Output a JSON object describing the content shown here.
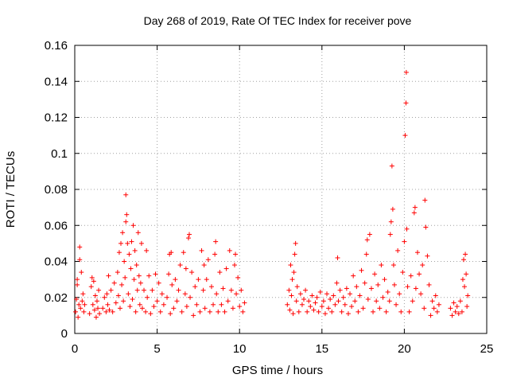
{
  "chart_data": {
    "type": "scatter",
    "title": "Day 268 of 2019, Rate Of TEC Index for receiver pove",
    "xlabel": "GPS time / hours",
    "ylabel": "ROTI / TECUs",
    "xlim": [
      0,
      24
    ],
    "ylim": [
      0,
      0.16
    ],
    "xticks": [
      0,
      5,
      10,
      15,
      20,
      25
    ],
    "xtick_labels": [
      "0",
      "5",
      "10",
      "15",
      "20",
      "25"
    ],
    "yticks": [
      0,
      0.02,
      0.04,
      0.06,
      0.08,
      0.1,
      0.12,
      0.14,
      0.16
    ],
    "ytick_labels": [
      "0",
      "0.02",
      "0.04",
      "0.06",
      "0.08",
      "0.1",
      "0.12",
      "0.14",
      "0.16"
    ],
    "grid": true,
    "marker": "+",
    "color": "#ff0000",
    "series": [
      {
        "name": "ROTI",
        "points": [
          [
            0.05,
            0.012
          ],
          [
            0.1,
            0.019
          ],
          [
            0.15,
            0.027
          ],
          [
            0.2,
            0.009
          ],
          [
            0.25,
            0.016
          ],
          [
            0.3,
            0.041
          ],
          [
            0.35,
            0.014
          ],
          [
            0.4,
            0.034
          ],
          [
            0.45,
            0.018
          ],
          [
            0.5,
            0.022
          ],
          [
            0.55,
            0.012
          ],
          [
            0.6,
            0.016
          ],
          [
            0.15,
            0.03
          ],
          [
            0.3,
            0.048
          ],
          [
            0.9,
            0.011
          ],
          [
            1.0,
            0.026
          ],
          [
            1.05,
            0.031
          ],
          [
            1.1,
            0.016
          ],
          [
            1.15,
            0.029
          ],
          [
            1.2,
            0.013
          ],
          [
            1.25,
            0.021
          ],
          [
            1.3,
            0.009
          ],
          [
            1.35,
            0.018
          ],
          [
            1.4,
            0.014
          ],
          [
            1.45,
            0.024
          ],
          [
            1.5,
            0.011
          ],
          [
            1.7,
            0.014
          ],
          [
            1.8,
            0.02
          ],
          [
            1.9,
            0.012
          ],
          [
            1.95,
            0.022
          ],
          [
            2.0,
            0.016
          ],
          [
            2.05,
            0.032
          ],
          [
            2.1,
            0.013
          ],
          [
            2.2,
            0.024
          ],
          [
            2.3,
            0.012
          ],
          [
            2.4,
            0.028
          ],
          [
            2.5,
            0.017
          ],
          [
            2.6,
            0.034
          ],
          [
            2.65,
            0.021
          ],
          [
            2.7,
            0.045
          ],
          [
            2.75,
            0.014
          ],
          [
            2.8,
            0.05
          ],
          [
            2.85,
            0.027
          ],
          [
            2.9,
            0.056
          ],
          [
            2.95,
            0.018
          ],
          [
            3.0,
            0.04
          ],
          [
            3.05,
            0.031
          ],
          [
            3.1,
            0.062
          ],
          [
            3.1,
            0.077
          ],
          [
            3.15,
            0.066
          ],
          [
            3.2,
            0.05
          ],
          [
            3.25,
            0.022
          ],
          [
            3.3,
            0.044
          ],
          [
            3.35,
            0.015
          ],
          [
            3.4,
            0.036
          ],
          [
            3.45,
            0.051
          ],
          [
            3.5,
            0.019
          ],
          [
            3.55,
            0.06
          ],
          [
            3.6,
            0.03
          ],
          [
            3.65,
            0.046
          ],
          [
            3.7,
            0.012
          ],
          [
            3.75,
            0.038
          ],
          [
            3.8,
            0.024
          ],
          [
            3.85,
            0.056
          ],
          [
            3.9,
            0.032
          ],
          [
            3.95,
            0.016
          ],
          [
            4.0,
            0.028
          ],
          [
            4.05,
            0.05
          ],
          [
            4.1,
            0.014
          ],
          [
            4.2,
            0.024
          ],
          [
            4.3,
            0.012
          ],
          [
            4.35,
            0.046
          ],
          [
            4.4,
            0.02
          ],
          [
            4.5,
            0.032
          ],
          [
            4.6,
            0.011
          ],
          [
            4.7,
            0.024
          ],
          [
            4.8,
            0.015
          ],
          [
            4.9,
            0.033
          ],
          [
            5.0,
            0.018
          ],
          [
            5.1,
            0.028
          ],
          [
            5.2,
            0.012
          ],
          [
            5.3,
            0.022
          ],
          [
            5.4,
            0.016
          ],
          [
            5.6,
            0.02
          ],
          [
            5.7,
            0.033
          ],
          [
            5.75,
            0.044
          ],
          [
            5.8,
            0.011
          ],
          [
            5.85,
            0.045
          ],
          [
            5.9,
            0.027
          ],
          [
            6.0,
            0.014
          ],
          [
            6.1,
            0.03
          ],
          [
            6.2,
            0.018
          ],
          [
            6.3,
            0.024
          ],
          [
            6.4,
            0.038
          ],
          [
            6.5,
            0.012
          ],
          [
            6.6,
            0.045
          ],
          [
            6.7,
            0.022
          ],
          [
            6.75,
            0.036
          ],
          [
            6.8,
            0.015
          ],
          [
            6.9,
            0.053
          ],
          [
            6.95,
            0.055
          ],
          [
            7.0,
            0.02
          ],
          [
            7.1,
            0.034
          ],
          [
            7.2,
            0.01
          ],
          [
            7.3,
            0.026
          ],
          [
            7.4,
            0.016
          ],
          [
            7.5,
            0.03
          ],
          [
            7.6,
            0.012
          ],
          [
            7.7,
            0.046
          ],
          [
            7.8,
            0.024
          ],
          [
            7.85,
            0.038
          ],
          [
            7.9,
            0.014
          ],
          [
            8.0,
            0.03
          ],
          [
            8.1,
            0.041
          ],
          [
            8.2,
            0.012
          ],
          [
            8.3,
            0.026
          ],
          [
            8.4,
            0.016
          ],
          [
            8.5,
            0.044
          ],
          [
            8.55,
            0.051
          ],
          [
            8.6,
            0.022
          ],
          [
            8.7,
            0.012
          ],
          [
            8.8,
            0.034
          ],
          [
            8.9,
            0.016
          ],
          [
            9.0,
            0.025
          ],
          [
            9.1,
            0.012
          ],
          [
            9.2,
            0.036
          ],
          [
            9.3,
            0.018
          ],
          [
            9.4,
            0.046
          ],
          [
            9.5,
            0.024
          ],
          [
            9.6,
            0.014
          ],
          [
            9.7,
            0.038
          ],
          [
            9.75,
            0.044
          ],
          [
            9.8,
            0.022
          ],
          [
            9.9,
            0.031
          ],
          [
            10.0,
            0.015
          ],
          [
            10.1,
            0.024
          ],
          [
            10.2,
            0.012
          ],
          [
            10.3,
            0.017
          ],
          [
            12.9,
            0.016
          ],
          [
            13.0,
            0.024
          ],
          [
            13.05,
            0.013
          ],
          [
            13.1,
            0.038
          ],
          [
            13.15,
            0.021
          ],
          [
            13.2,
            0.03
          ],
          [
            13.25,
            0.011
          ],
          [
            13.3,
            0.034
          ],
          [
            13.35,
            0.044
          ],
          [
            13.4,
            0.05
          ],
          [
            13.45,
            0.018
          ],
          [
            13.5,
            0.026
          ],
          [
            13.6,
            0.012
          ],
          [
            13.7,
            0.022
          ],
          [
            13.8,
            0.016
          ],
          [
            13.9,
            0.019
          ],
          [
            14.0,
            0.024
          ],
          [
            14.1,
            0.012
          ],
          [
            14.2,
            0.018
          ],
          [
            14.3,
            0.015
          ],
          [
            14.4,
            0.021
          ],
          [
            14.5,
            0.013
          ],
          [
            14.6,
            0.017
          ],
          [
            14.7,
            0.02
          ],
          [
            14.8,
            0.012
          ],
          [
            14.9,
            0.023
          ],
          [
            15.0,
            0.015
          ],
          [
            15.1,
            0.018
          ],
          [
            15.2,
            0.011
          ],
          [
            15.3,
            0.022
          ],
          [
            15.4,
            0.014
          ],
          [
            15.5,
            0.019
          ],
          [
            15.6,
            0.012
          ],
          [
            15.7,
            0.021
          ],
          [
            15.8,
            0.016
          ],
          [
            15.9,
            0.028
          ],
          [
            15.95,
            0.042
          ],
          [
            16.0,
            0.018
          ],
          [
            16.1,
            0.024
          ],
          [
            16.2,
            0.012
          ],
          [
            16.3,
            0.02
          ],
          [
            16.4,
            0.016
          ],
          [
            16.5,
            0.025
          ],
          [
            16.6,
            0.011
          ],
          [
            16.7,
            0.022
          ],
          [
            16.8,
            0.015
          ],
          [
            16.9,
            0.032
          ],
          [
            17.0,
            0.018
          ],
          [
            17.1,
            0.026
          ],
          [
            17.2,
            0.012
          ],
          [
            17.3,
            0.021
          ],
          [
            17.4,
            0.035
          ],
          [
            17.5,
            0.014
          ],
          [
            17.6,
            0.028
          ],
          [
            17.7,
            0.044
          ],
          [
            17.75,
            0.052
          ],
          [
            17.8,
            0.019
          ],
          [
            17.9,
            0.055
          ],
          [
            18.0,
            0.025
          ],
          [
            18.1,
            0.012
          ],
          [
            18.2,
            0.033
          ],
          [
            18.3,
            0.018
          ],
          [
            18.4,
            0.027
          ],
          [
            18.5,
            0.014
          ],
          [
            18.6,
            0.038
          ],
          [
            18.7,
            0.02
          ],
          [
            18.8,
            0.03
          ],
          [
            18.9,
            0.012
          ],
          [
            19.0,
            0.023
          ],
          [
            19.1,
            0.018
          ],
          [
            19.15,
            0.055
          ],
          [
            19.2,
            0.062
          ],
          [
            19.25,
            0.093
          ],
          [
            19.3,
            0.069
          ],
          [
            19.35,
            0.038
          ],
          [
            19.4,
            0.027
          ],
          [
            19.5,
            0.016
          ],
          [
            19.6,
            0.046
          ],
          [
            19.7,
            0.022
          ],
          [
            19.8,
            0.012
          ],
          [
            19.9,
            0.034
          ],
          [
            20.0,
            0.051
          ],
          [
            20.05,
            0.11
          ],
          [
            20.1,
            0.128
          ],
          [
            20.12,
            0.145
          ],
          [
            20.15,
            0.058
          ],
          [
            20.2,
            0.026
          ],
          [
            20.3,
            0.012
          ],
          [
            20.4,
            0.032
          ],
          [
            20.5,
            0.018
          ],
          [
            20.6,
            0.067
          ],
          [
            20.65,
            0.07
          ],
          [
            20.7,
            0.025
          ],
          [
            20.8,
            0.045
          ],
          [
            20.9,
            0.033
          ],
          [
            21.0,
            0.022
          ],
          [
            21.1,
            0.038
          ],
          [
            21.2,
            0.014
          ],
          [
            21.25,
            0.074
          ],
          [
            21.3,
            0.059
          ],
          [
            21.4,
            0.043
          ],
          [
            21.5,
            0.027
          ],
          [
            21.6,
            0.01
          ],
          [
            21.7,
            0.018
          ],
          [
            21.8,
            0.014
          ],
          [
            21.9,
            0.021
          ],
          [
            22.0,
            0.012
          ],
          [
            22.1,
            0.016
          ],
          [
            22.8,
            0.014
          ],
          [
            22.9,
            0.01
          ],
          [
            23.0,
            0.017
          ],
          [
            23.1,
            0.012
          ],
          [
            23.2,
            0.015
          ],
          [
            23.3,
            0.011
          ],
          [
            23.4,
            0.018
          ],
          [
            23.5,
            0.012
          ],
          [
            23.55,
            0.03
          ],
          [
            23.6,
            0.041
          ],
          [
            23.65,
            0.026
          ],
          [
            23.7,
            0.044
          ],
          [
            23.75,
            0.033
          ],
          [
            23.8,
            0.015
          ],
          [
            23.85,
            0.021
          ]
        ]
      }
    ]
  }
}
